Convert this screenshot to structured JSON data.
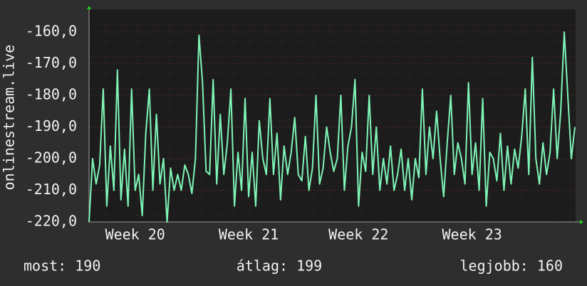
{
  "chart_data": {
    "type": "line",
    "ylabel": "onlinestream.live",
    "categories": [
      null,
      null,
      null,
      null,
      null,
      null,
      null,
      null,
      null,
      null,
      null,
      null,
      null,
      "Week 20",
      null,
      null,
      null,
      null,
      null,
      null,
      null,
      null,
      null,
      null,
      null,
      null,
      null,
      null,
      null,
      null,
      null,
      null,
      null,
      null,
      null,
      null,
      null,
      null,
      null,
      null,
      null,
      null,
      null,
      null,
      null,
      "Week 21",
      null,
      null,
      null,
      null,
      null,
      null,
      null,
      null,
      null,
      null,
      null,
      null,
      null,
      null,
      null,
      null,
      null,
      null,
      null,
      null,
      null,
      null,
      null,
      null,
      null,
      null,
      null,
      null,
      null,
      null,
      "Week 22",
      null,
      null,
      null,
      null,
      null,
      null,
      null,
      null,
      null,
      null,
      null,
      null,
      null,
      null,
      null,
      null,
      null,
      null,
      null,
      null,
      null,
      null,
      null,
      null,
      null,
      null,
      null,
      null,
      null,
      null,
      null,
      "Week 23",
      null,
      null,
      null,
      null,
      null,
      null,
      null,
      null,
      null,
      null,
      null,
      null,
      null,
      null,
      null,
      null,
      null,
      null,
      null,
      null,
      null,
      null,
      null,
      null,
      null,
      null,
      null,
      null,
      null
    ],
    "values": [
      -220,
      -200,
      -208,
      -202,
      -178,
      -215,
      -196,
      -210,
      -172,
      -213,
      -197,
      -215,
      -178,
      -210,
      -205,
      -218,
      -192,
      -178,
      -210,
      -186,
      -208,
      -200,
      -220,
      -203,
      -210,
      -205,
      -210,
      -202,
      -205,
      -211,
      -200,
      -161,
      -176,
      -204,
      -205,
      -175,
      -208,
      -186,
      -205,
      -195,
      -178,
      -215,
      -198,
      -210,
      -181,
      -212,
      -198,
      -215,
      -188,
      -200,
      -205,
      -181,
      -205,
      -192,
      -213,
      -196,
      -205,
      -198,
      -187,
      -205,
      -207,
      -193,
      -210,
      -203,
      -180,
      -208,
      -203,
      -190,
      -198,
      -204,
      -200,
      -180,
      -210,
      -196,
      -190,
      -175,
      -215,
      -198,
      -204,
      -180,
      -205,
      -190,
      -210,
      -200,
      -208,
      -196,
      -210,
      -205,
      -197,
      -210,
      -200,
      -213,
      -200,
      -206,
      -178,
      -205,
      -190,
      -200,
      -185,
      -200,
      -212,
      -195,
      -180,
      -205,
      -195,
      -200,
      -208,
      -176,
      -205,
      -195,
      -210,
      -181,
      -215,
      -198,
      -200,
      -207,
      -192,
      -210,
      -196,
      -208,
      -197,
      -203,
      -193,
      -178,
      -205,
      -168,
      -200,
      -208,
      -195,
      -205,
      -198,
      -178,
      -200,
      -185,
      -160,
      -180,
      -200,
      -190
    ],
    "color": "#7ef5b6",
    "ylim": [
      -220,
      -152.8
    ],
    "yticks": [
      {
        "value": -220,
        "label": "-220,0"
      },
      {
        "value": -210,
        "label": "-210,0"
      },
      {
        "value": -200,
        "label": "-200,0"
      },
      {
        "value": -190,
        "label": "-190,0"
      },
      {
        "value": -180,
        "label": "-180,0"
      },
      {
        "value": -170,
        "label": "-170,0"
      },
      {
        "value": -160,
        "label": "-160,0"
      }
    ],
    "grid": true,
    "footer": [
      "most: 190",
      "átlag: 199",
      "legjobb: 160"
    ]
  }
}
